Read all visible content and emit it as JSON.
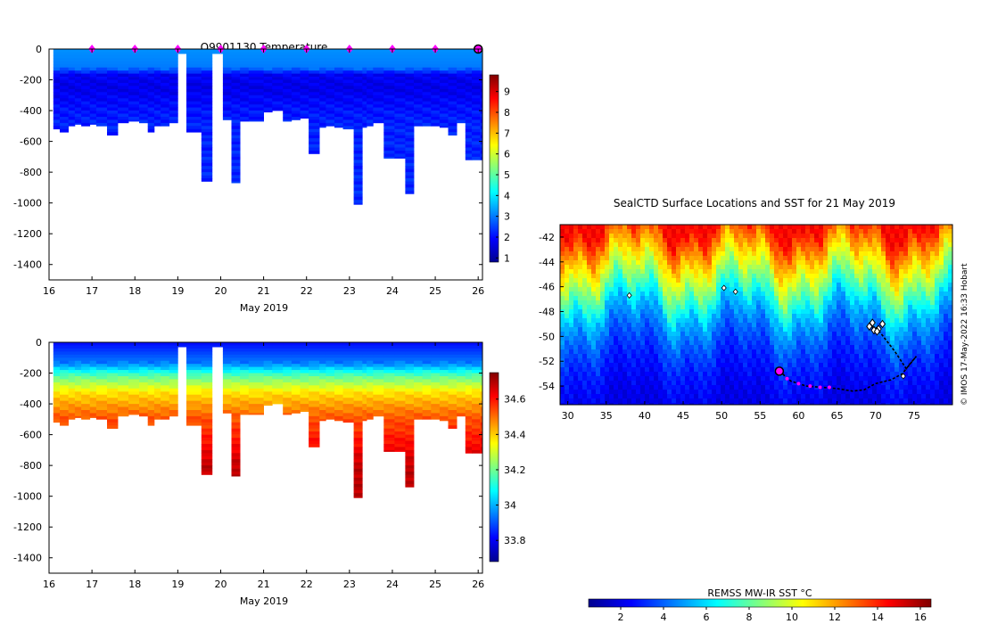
{
  "colors": {
    "jet": [
      "#00008f",
      "#0000ff",
      "#0080ff",
      "#00ffff",
      "#80ff80",
      "#ffff00",
      "#ff8000",
      "#ff0000",
      "#800000"
    ],
    "float_marker": "#ff00ff",
    "track": "#000000"
  },
  "chart_data": [
    {
      "id": "temperature-section",
      "type": "heatmap",
      "title": "Q9901130  Temperature",
      "xlabel": "May 2019",
      "ylabel": "",
      "xlim": [
        16,
        26.1
      ],
      "ylim": [
        -1500,
        0
      ],
      "xticks": [
        16,
        17,
        18,
        19,
        20,
        21,
        22,
        23,
        24,
        25,
        26
      ],
      "yticks": [
        0,
        -200,
        -400,
        -600,
        -800,
        -1000,
        -1200,
        -1400
      ],
      "colorbar": {
        "range": [
          0.8,
          9.8
        ],
        "ticks": [
          1,
          2,
          3,
          4,
          5,
          6,
          7,
          8,
          9
        ]
      },
      "profile_times": [
        16.1,
        16.25,
        16.45,
        16.6,
        16.75,
        16.95,
        17.1,
        17.35,
        17.6,
        17.85,
        18.1,
        18.3,
        18.45,
        18.6,
        18.8,
        19.0,
        19.2,
        19.55,
        19.8,
        20.05,
        20.25,
        20.45,
        20.65,
        21.0,
        21.2,
        21.45,
        21.65,
        21.85,
        22.05,
        22.3,
        22.45,
        22.65,
        22.85,
        23.1,
        23.3,
        23.4,
        23.55,
        23.8,
        24.05,
        24.3,
        24.5,
        24.7,
        24.9,
        25.1,
        25.3,
        25.5,
        25.7,
        25.85,
        26.05
      ],
      "profile_max_depth": [
        520,
        540,
        500,
        490,
        500,
        490,
        500,
        560,
        480,
        470,
        480,
        540,
        500,
        500,
        480,
        30,
        540,
        860,
        30,
        460,
        870,
        470,
        470,
        410,
        400,
        470,
        460,
        450,
        680,
        510,
        500,
        510,
        520,
        1010,
        510,
        500,
        480,
        710,
        710,
        940,
        500,
        500,
        500,
        510,
        560,
        480,
        720,
        720,
        720
      ],
      "value_colormap_by_depth": [
        {
          "depth": 0,
          "value": 3.2
        },
        {
          "depth": 120,
          "value": 3.0
        },
        {
          "depth": 170,
          "value": 1.8
        },
        {
          "depth": 260,
          "value": 1.7
        },
        {
          "depth": 360,
          "value": 2.0
        },
        {
          "depth": 470,
          "value": 2.2
        },
        {
          "depth": 1500,
          "value": 2.4
        }
      ],
      "float_surfacings": [
        17,
        18,
        19,
        20,
        21,
        22,
        23,
        24,
        25
      ],
      "latest_position_marker": 26
    },
    {
      "id": "salinity-section",
      "type": "heatmap",
      "title": "",
      "xlabel": "May 2019",
      "ylabel": "",
      "xlim": [
        16,
        26.1
      ],
      "ylim": [
        -1500,
        0
      ],
      "xticks": [
        16,
        17,
        18,
        19,
        20,
        21,
        22,
        23,
        24,
        25,
        26
      ],
      "yticks": [
        0,
        -200,
        -400,
        -600,
        -800,
        -1000,
        -1200,
        -1400
      ],
      "colorbar": {
        "range": [
          33.68,
          34.75
        ],
        "ticks": [
          33.8,
          34,
          34.2,
          34.4,
          34.6
        ]
      },
      "value_colormap_by_depth": [
        {
          "depth": 0,
          "value": 33.82
        },
        {
          "depth": 140,
          "value": 33.95
        },
        {
          "depth": 220,
          "value": 34.18
        },
        {
          "depth": 330,
          "value": 34.38
        },
        {
          "depth": 480,
          "value": 34.52
        },
        {
          "depth": 800,
          "value": 34.68
        },
        {
          "depth": 1500,
          "value": 34.72
        }
      ]
    },
    {
      "id": "sst-map",
      "type": "heatmap",
      "title": "SealCTD Surface Locations and SST for 21 May 2019",
      "xlim": [
        29,
        80
      ],
      "ylim": [
        -55.5,
        -41
      ],
      "xticks": [
        30,
        35,
        40,
        45,
        50,
        55,
        60,
        65,
        70,
        75
      ],
      "yticks": [
        -42,
        -44,
        -46,
        -48,
        -50,
        -52,
        -54
      ],
      "credit": "© IMOS 17-May-2022 16:33 Hobart",
      "colorbar": {
        "label": "REMSS MW-IR SST °C",
        "range": [
          0.5,
          16.5
        ],
        "ticks": [
          2,
          4,
          6,
          8,
          10,
          12,
          14,
          16
        ]
      },
      "sst_latitude_profile": [
        {
          "lat": -41,
          "value": 14.5
        },
        {
          "lat": -43,
          "value": 12.0
        },
        {
          "lat": -45,
          "value": 9.5
        },
        {
          "lat": -46.5,
          "value": 7.5
        },
        {
          "lat": -48,
          "value": 5.5
        },
        {
          "lat": -50,
          "value": 4.0
        },
        {
          "lat": -52,
          "value": 3.0
        },
        {
          "lat": -55.5,
          "value": 2.0
        }
      ],
      "track": [
        [
          57.5,
          -52.8
        ],
        [
          59,
          -53.6
        ],
        [
          61,
          -54.0
        ],
        [
          63,
          -54.1
        ],
        [
          65,
          -54.2
        ],
        [
          67,
          -54.4
        ],
        [
          68.5,
          -54.3
        ],
        [
          70,
          -53.8
        ],
        [
          72,
          -53.5
        ],
        [
          73.5,
          -53.0
        ],
        [
          74.5,
          -52.2
        ],
        [
          75.3,
          -51.6
        ],
        [
          74,
          -52.6
        ],
        [
          72.5,
          -51.2
        ],
        [
          71,
          -50.0
        ],
        [
          70,
          -49.2
        ],
        [
          69.5,
          -49.3
        ],
        [
          70.5,
          -49.5
        ]
      ],
      "magenta_points": [
        [
          58.5,
          -53.4
        ],
        [
          60,
          -53.8
        ],
        [
          61.5,
          -54.0
        ],
        [
          62.8,
          -54.1
        ],
        [
          64,
          -54.1
        ]
      ],
      "start_marker": [
        57.5,
        -52.8
      ],
      "cluster_markers": [
        [
          69.2,
          -49.2
        ],
        [
          69.8,
          -49.5
        ],
        [
          70.4,
          -49.4
        ],
        [
          70.9,
          -49.0
        ],
        [
          69.6,
          -48.9
        ],
        [
          70.2,
          -49.6
        ]
      ],
      "other_tags": [
        [
          38,
          -46.7
        ],
        [
          50.3,
          -46.1
        ],
        [
          51.8,
          -46.4
        ],
        [
          73.6,
          -53.2
        ]
      ]
    }
  ]
}
